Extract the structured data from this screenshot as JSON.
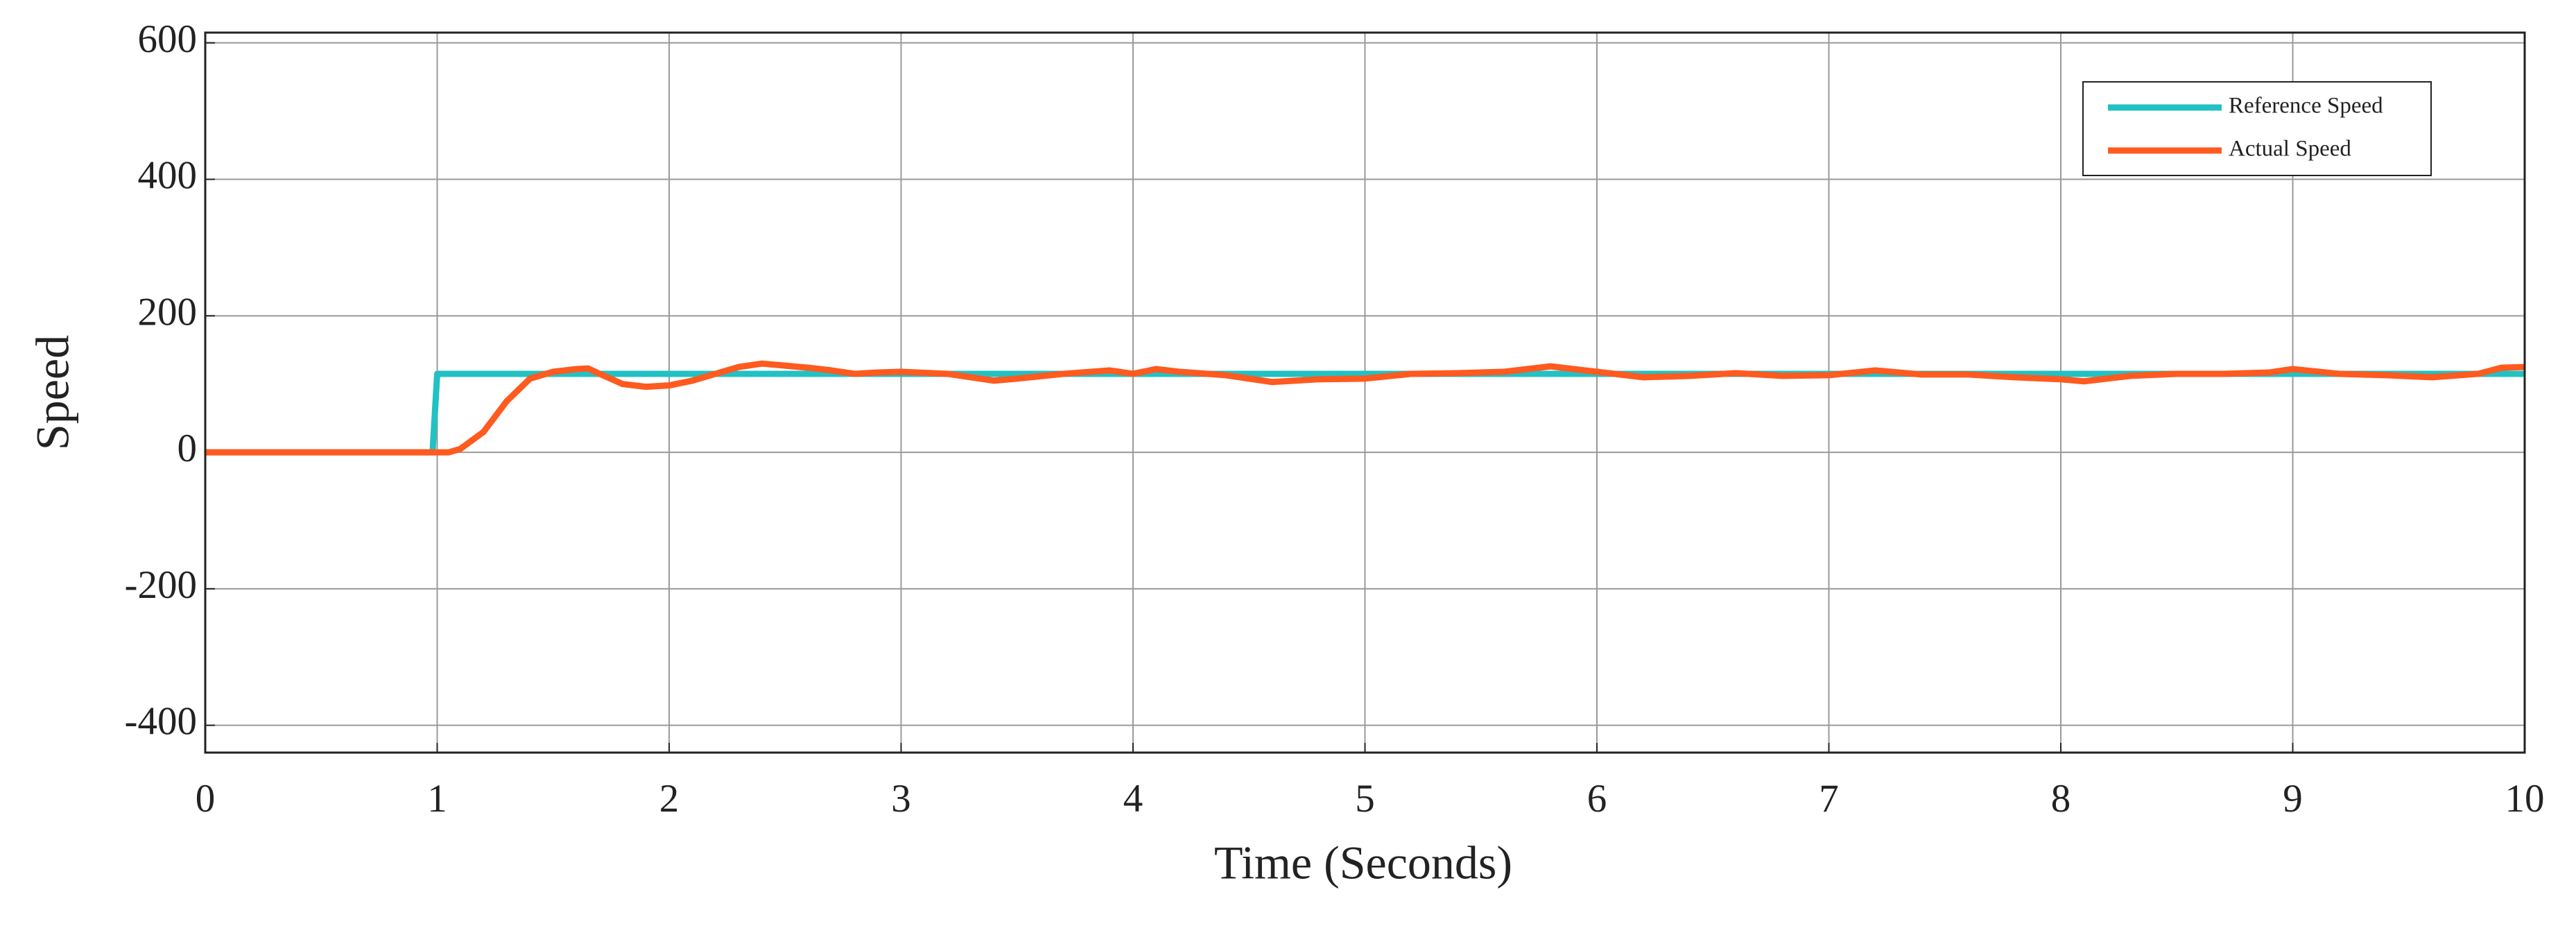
{
  "chart_data": {
    "type": "line",
    "x_label": "Time (Seconds)",
    "y_label": "Speed",
    "xlim": [
      0,
      10
    ],
    "ylim": [
      -440,
      615
    ],
    "xticks": [
      0,
      1,
      2,
      3,
      4,
      5,
      6,
      7,
      8,
      9,
      10
    ],
    "yticks": [
      -400,
      -200,
      0,
      200,
      400,
      600
    ],
    "grid": true,
    "legend": "upper right",
    "series": [
      {
        "name": "Reference Speed",
        "color": "#22c1c3",
        "x": [
          0,
          0.98,
          1.0,
          10
        ],
        "values": [
          0,
          0,
          115,
          115
        ]
      },
      {
        "name": "Actual Speed",
        "color": "#ff5a1f",
        "x": [
          0,
          1.05,
          1.1,
          1.2,
          1.3,
          1.4,
          1.5,
          1.6,
          1.65,
          1.7,
          1.8,
          1.9,
          2.0,
          2.1,
          2.2,
          2.3,
          2.4,
          2.5,
          2.6,
          2.7,
          2.8,
          2.9,
          3.0,
          3.2,
          3.4,
          3.5,
          3.7,
          3.9,
          4.0,
          4.1,
          4.2,
          4.4,
          4.6,
          4.8,
          5.0,
          5.2,
          5.4,
          5.6,
          5.8,
          6.0,
          6.2,
          6.4,
          6.6,
          6.8,
          7.0,
          7.2,
          7.4,
          7.6,
          7.8,
          8.0,
          8.1,
          8.3,
          8.5,
          8.7,
          8.9,
          9.0,
          9.2,
          9.4,
          9.6,
          9.8,
          9.9,
          10.0
        ],
        "values": [
          0,
          0,
          5,
          30,
          75,
          108,
          118,
          122,
          123,
          115,
          100,
          96,
          98,
          105,
          115,
          125,
          130,
          127,
          124,
          120,
          115,
          117,
          118,
          115,
          105,
          108,
          115,
          120,
          115,
          122,
          118,
          113,
          103,
          107,
          108,
          115,
          116,
          118,
          126,
          118,
          110,
          112,
          116,
          112,
          113,
          120,
          114,
          114,
          110,
          107,
          104,
          112,
          115,
          115,
          117,
          122,
          115,
          113,
          110,
          115,
          124,
          125
        ]
      }
    ]
  }
}
